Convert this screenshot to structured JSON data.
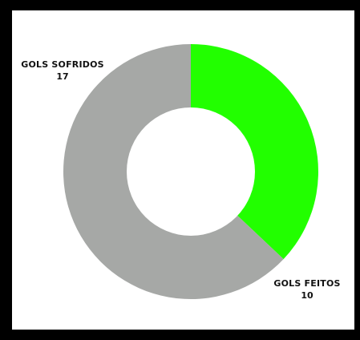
{
  "chart_data": {
    "type": "pie",
    "donut": true,
    "categories": [
      "GOLS FEITOS",
      "GOLS SOFRIDOS"
    ],
    "values": [
      10,
      17
    ],
    "colors": [
      "#22ff00",
      "#a6a8a6"
    ],
    "title": "",
    "legend": "none",
    "labels": [
      {
        "name": "GOLS FEITOS",
        "value": "10"
      },
      {
        "name": "GOLS SOFRIDOS",
        "value": "17"
      }
    ]
  },
  "frame": {
    "border_color": "#000000",
    "background": "#ffffff"
  }
}
